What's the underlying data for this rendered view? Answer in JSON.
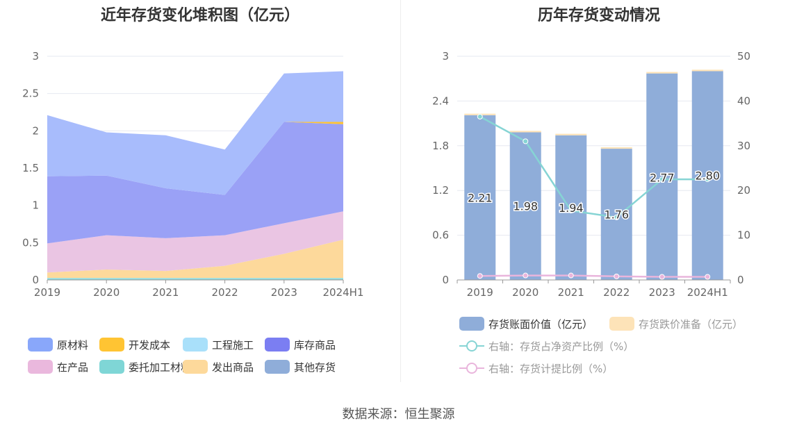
{
  "source": "数据来源：恒生聚源",
  "chart_data": [
    {
      "type": "area",
      "stacked": true,
      "title": "近年存货变化堆积图（亿元）",
      "categories": [
        "2019",
        "2020",
        "2021",
        "2022",
        "2023",
        "2024H1"
      ],
      "yticks": [
        "0",
        "0.5",
        "1",
        "1.5",
        "2",
        "2.5",
        "3"
      ],
      "ylim": [
        0,
        3
      ],
      "grid": true,
      "legend_position": "bottom",
      "series": [
        {
          "name": "其他存货",
          "color": "#8fadd9",
          "values": [
            0,
            0,
            0,
            0,
            0,
            0
          ]
        },
        {
          "name": "委托加工材料",
          "color": "#88d8d8",
          "values": [
            0.02,
            0.02,
            0.02,
            0.02,
            0.02,
            0.02
          ]
        },
        {
          "name": "发出商品",
          "color": "#fdd99b",
          "values": [
            0.08,
            0.12,
            0.1,
            0.17,
            0.33,
            0.52
          ]
        },
        {
          "name": "在产品",
          "color": "#eac5e3",
          "values": [
            0.39,
            0.46,
            0.44,
            0.41,
            0.41,
            0.38
          ]
        },
        {
          "name": "工程施工",
          "color": "#a9e0fa",
          "values": [
            0,
            0,
            0,
            0,
            0,
            0
          ]
        },
        {
          "name": "库存商品",
          "color": "#9aa1f6",
          "values": [
            0.9,
            0.8,
            0.67,
            0.54,
            1.36,
            1.17
          ]
        },
        {
          "name": "开发成本",
          "color": "#ffc433",
          "values": [
            0,
            0,
            0,
            0,
            0,
            0.03
          ]
        },
        {
          "name": "原材料",
          "color": "#a8bcfc",
          "values": [
            0.82,
            0.58,
            0.71,
            0.61,
            0.65,
            0.68
          ]
        }
      ],
      "legend": [
        {
          "name": "原材料",
          "color": "#89a7fa"
        },
        {
          "name": "开发成本",
          "color": "#ffc433"
        },
        {
          "name": "工程施工",
          "color": "#a9e0fa"
        },
        {
          "name": "库存商品",
          "color": "#7b7ef2"
        },
        {
          "name": "在产品",
          "color": "#eab8dd"
        },
        {
          "name": "委托加工材料",
          "color": "#7fd6d6"
        },
        {
          "name": "发出商品",
          "color": "#fdd99b"
        },
        {
          "name": "其他存货",
          "color": "#8fadd9"
        }
      ]
    },
    {
      "type": "bar",
      "title": "历年存货变动情况",
      "categories": [
        "2019",
        "2020",
        "2021",
        "2022",
        "2023",
        "2024H1"
      ],
      "yticks_left": [
        "0",
        "0.6",
        "1.2",
        "1.8",
        "2.4",
        "3"
      ],
      "yticks_right": [
        "0",
        "10",
        "20",
        "30",
        "40",
        "50"
      ],
      "ylim_left": [
        0,
        3
      ],
      "ylim_right": [
        0,
        50
      ],
      "grid": true,
      "legend_position": "bottom",
      "bar_series": [
        {
          "name": "存货账面价值（亿元）",
          "color": "#8fadd9",
          "values": [
            2.21,
            1.98,
            1.94,
            1.76,
            2.77,
            2.8
          ],
          "labels": [
            "2.21",
            "1.98",
            "1.94",
            "1.76",
            "2.77",
            "2.80"
          ]
        },
        {
          "name": "存货跌价准备（亿元）",
          "color": "#fde3b8",
          "values": [
            0.02,
            0.02,
            0.02,
            0.02,
            0.02,
            0.02
          ]
        }
      ],
      "line_series": [
        {
          "name": "右轴：存货占净资产比例（%）",
          "color": "#86d4d4",
          "values": [
            36.5,
            31.0,
            15.5,
            14.0,
            22.5,
            22.5
          ]
        },
        {
          "name": "右轴：存货计提比例（%）",
          "color": "#e9b5dc",
          "values": [
            0.9,
            1.0,
            1.0,
            0.8,
            0.7,
            0.7
          ]
        }
      ]
    }
  ]
}
